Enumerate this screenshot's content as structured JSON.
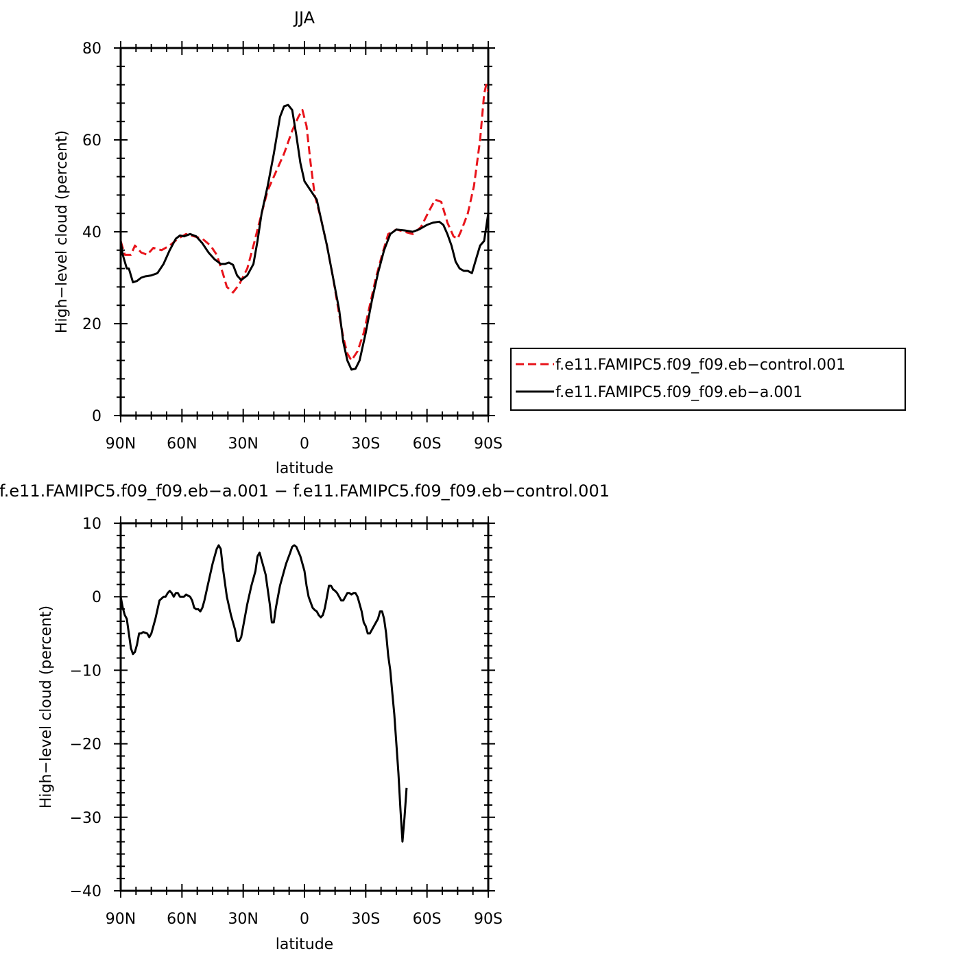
{
  "chart_data": [
    {
      "type": "line",
      "title": "JJA",
      "xlabel": "latitude",
      "ylabel": "High−level cloud (percent)",
      "xlim": [
        90,
        -90
      ],
      "ylim": [
        0,
        80
      ],
      "x_ticks": [
        {
          "value": 90,
          "label": "90N"
        },
        {
          "value": 60,
          "label": "60N"
        },
        {
          "value": 30,
          "label": "30N"
        },
        {
          "value": 0,
          "label": "0"
        },
        {
          "value": -30,
          "label": "30S"
        },
        {
          "value": -60,
          "label": "60S"
        },
        {
          "value": -90,
          "label": "90S"
        }
      ],
      "y_ticks": [
        {
          "value": 0,
          "label": "0"
        },
        {
          "value": 20,
          "label": "20"
        },
        {
          "value": 40,
          "label": "40"
        },
        {
          "value": 60,
          "label": "60"
        },
        {
          "value": 80,
          "label": "80"
        }
      ],
      "legend_position": "right",
      "series": [
        {
          "name": "f.e11.FAMIPC5.f09_f09.eb−control.001",
          "color": "#e8141b",
          "dash": true,
          "points": [
            [
              90,
              38
            ],
            [
              88,
              35
            ],
            [
              85,
              35
            ],
            [
              83,
              37
            ],
            [
              80,
              35.5
            ],
            [
              77,
              35
            ],
            [
              74,
              36.5
            ],
            [
              70,
              36
            ],
            [
              66,
              37
            ],
            [
              62,
              38.5
            ],
            [
              58,
              39.5
            ],
            [
              54,
              39
            ],
            [
              50,
              38.5
            ],
            [
              46,
              37
            ],
            [
              43,
              35
            ],
            [
              40,
              31
            ],
            [
              38,
              28
            ],
            [
              35,
              26.8
            ],
            [
              32,
              28.5
            ],
            [
              28,
              32
            ],
            [
              25,
              37
            ],
            [
              21,
              44
            ],
            [
              18,
              49
            ],
            [
              14,
              53
            ],
            [
              10,
              57
            ],
            [
              6,
              62
            ],
            [
              3,
              65
            ],
            [
              1,
              66.5
            ],
            [
              -1,
              63
            ],
            [
              -3,
              55
            ],
            [
              -5,
              48
            ],
            [
              -8,
              43
            ],
            [
              -11,
              37
            ],
            [
              -14,
              30
            ],
            [
              -17,
              22
            ],
            [
              -19,
              17
            ],
            [
              -21,
              13.5
            ],
            [
              -23,
              12
            ],
            [
              -26,
              14
            ],
            [
              -29,
              18
            ],
            [
              -32,
              24
            ],
            [
              -35,
              30
            ],
            [
              -38,
              35
            ],
            [
              -41,
              39.5
            ],
            [
              -45,
              40.5
            ],
            [
              -49,
              40
            ],
            [
              -53,
              39.5
            ],
            [
              -57,
              41
            ],
            [
              -61,
              44.5
            ],
            [
              -64,
              47
            ],
            [
              -67,
              46.5
            ],
            [
              -70,
              42
            ],
            [
              -73,
              39
            ],
            [
              -75,
              38.5
            ],
            [
              -77,
              40.5
            ],
            [
              -80,
              44
            ],
            [
              -83,
              50
            ],
            [
              -86,
              60
            ],
            [
              -88,
              70
            ],
            [
              -89,
              72
            ],
            [
              -90,
              70.5
            ]
          ]
        },
        {
          "name": "f.e11.FAMIPC5.f09_f09.eb−a.001",
          "color": "#000000",
          "dash": false,
          "points": [
            [
              90,
              38
            ],
            [
              89,
              35
            ],
            [
              87,
              32
            ],
            [
              86,
              32
            ],
            [
              84,
              29
            ],
            [
              82,
              29.3
            ],
            [
              80,
              30
            ],
            [
              78,
              30.3
            ],
            [
              75,
              30.5
            ],
            [
              72,
              31
            ],
            [
              69,
              33
            ],
            [
              66,
              36
            ],
            [
              63,
              38.5
            ],
            [
              61,
              39.2
            ],
            [
              59,
              39
            ],
            [
              56,
              39.5
            ],
            [
              53,
              39
            ],
            [
              50,
              37.5
            ],
            [
              47,
              35.5
            ],
            [
              44,
              34
            ],
            [
              41,
              33
            ],
            [
              39,
              33
            ],
            [
              37,
              33.3
            ],
            [
              35,
              32.8
            ],
            [
              33,
              30.5
            ],
            [
              31,
              29.5
            ],
            [
              28,
              30.5
            ],
            [
              25,
              33
            ],
            [
              23,
              38
            ],
            [
              21,
              44
            ],
            [
              18,
              50
            ],
            [
              15,
              57
            ],
            [
              12,
              65
            ],
            [
              10,
              67.3
            ],
            [
              8,
              67.6
            ],
            [
              6,
              66.5
            ],
            [
              4,
              61
            ],
            [
              2,
              55
            ],
            [
              0,
              51
            ],
            [
              -3,
              49
            ],
            [
              -6,
              47
            ],
            [
              -8,
              43
            ],
            [
              -11,
              37
            ],
            [
              -14,
              30
            ],
            [
              -17,
              23
            ],
            [
              -19,
              16
            ],
            [
              -21,
              12
            ],
            [
              -23,
              10
            ],
            [
              -25,
              10.2
            ],
            [
              -27,
              12
            ],
            [
              -30,
              18
            ],
            [
              -33,
              25
            ],
            [
              -36,
              31
            ],
            [
              -39,
              36
            ],
            [
              -42,
              39.5
            ],
            [
              -45,
              40.5
            ],
            [
              -49,
              40.3
            ],
            [
              -53,
              40
            ],
            [
              -56,
              40.5
            ],
            [
              -60,
              41.5
            ],
            [
              -63,
              42
            ],
            [
              -66,
              42.2
            ],
            [
              -68,
              41.5
            ],
            [
              -70,
              39.5
            ],
            [
              -72,
              37
            ],
            [
              -74,
              33.5
            ],
            [
              -76,
              32
            ],
            [
              -78,
              31.5
            ],
            [
              -80,
              31.5
            ],
            [
              -82,
              31
            ],
            [
              -84,
              34
            ],
            [
              -86,
              37
            ],
            [
              -88,
              38
            ],
            [
              -89,
              41
            ],
            [
              -90,
              44
            ]
          ]
        }
      ]
    },
    {
      "type": "line",
      "title": "f.e11.FAMIPC5.f09_f09.eb−a.001 − f.e11.FAMIPC5.f09_f09.eb−control.001",
      "xlabel": "latitude",
      "ylabel": "High−level cloud (percent)",
      "xlim": [
        90,
        -90
      ],
      "ylim": [
        -40,
        10
      ],
      "x_ticks": [
        {
          "value": 90,
          "label": "90N"
        },
        {
          "value": 60,
          "label": "60N"
        },
        {
          "value": 30,
          "label": "30N"
        },
        {
          "value": 0,
          "label": "0"
        },
        {
          "value": -30,
          "label": "30S"
        },
        {
          "value": -60,
          "label": "60S"
        },
        {
          "value": -90,
          "label": "90S"
        }
      ],
      "y_ticks": [
        {
          "value": -40,
          "label": "−40"
        },
        {
          "value": -30,
          "label": "−30"
        },
        {
          "value": -20,
          "label": "−20"
        },
        {
          "value": -10,
          "label": "−10"
        },
        {
          "value": 0,
          "label": "0"
        },
        {
          "value": 10,
          "label": "10"
        }
      ],
      "series": [
        {
          "color": "#000000",
          "dash": false,
          "points": [
            [
              90,
              0
            ],
            [
              89,
              -1.5
            ],
            [
              88,
              -2.5
            ],
            [
              87,
              -3
            ],
            [
              86,
              -5
            ],
            [
              85,
              -7
            ],
            [
              84,
              -7.8
            ],
            [
              83,
              -7.5
            ],
            [
              82,
              -6.5
            ],
            [
              81,
              -5
            ],
            [
              80,
              -5
            ],
            [
              79,
              -4.8
            ],
            [
              77,
              -5
            ],
            [
              76,
              -5.5
            ],
            [
              75,
              -5
            ],
            [
              73,
              -3
            ],
            [
              71,
              -0.5
            ],
            [
              69,
              0
            ],
            [
              68,
              0
            ],
            [
              67,
              0.5
            ],
            [
              66,
              0.8
            ],
            [
              65,
              0.5
            ],
            [
              64,
              0
            ],
            [
              63,
              0.5
            ],
            [
              62,
              0.5
            ],
            [
              61,
              0
            ],
            [
              59,
              0
            ],
            [
              58,
              0.3
            ],
            [
              56,
              0
            ],
            [
              55,
              -0.5
            ],
            [
              54,
              -1.5
            ],
            [
              53,
              -1.7
            ],
            [
              52,
              -1.7
            ],
            [
              51,
              -2
            ],
            [
              50,
              -1.5
            ],
            [
              49,
              -0.5
            ],
            [
              47,
              2
            ],
            [
              45,
              4.5
            ],
            [
              43,
              6.5
            ],
            [
              42,
              7
            ],
            [
              41,
              6.5
            ],
            [
              40,
              4
            ],
            [
              38,
              0
            ],
            [
              36,
              -2.5
            ],
            [
              34,
              -4.5
            ],
            [
              33,
              -6
            ],
            [
              32,
              -6
            ],
            [
              31,
              -5.5
            ],
            [
              30,
              -4
            ],
            [
              28,
              -1
            ],
            [
              26,
              1.5
            ],
            [
              24,
              3.5
            ],
            [
              23,
              5.5
            ],
            [
              22,
              6
            ],
            [
              21,
              5
            ],
            [
              19,
              3
            ],
            [
              18,
              1
            ],
            [
              17,
              -1
            ],
            [
              16,
              -3.5
            ],
            [
              15,
              -3.5
            ],
            [
              14,
              -1.5
            ],
            [
              12,
              1.5
            ],
            [
              10,
              3.5
            ],
            [
              9,
              4.5
            ],
            [
              7,
              6
            ],
            [
              6,
              6.8
            ],
            [
              5,
              7
            ],
            [
              4,
              6.8
            ],
            [
              2,
              5.5
            ],
            [
              0,
              3.5
            ],
            [
              -1,
              1.5
            ],
            [
              -2,
              0
            ],
            [
              -4,
              -1.5
            ],
            [
              -5,
              -1.8
            ],
            [
              -6,
              -2
            ],
            [
              -7,
              -2.5
            ],
            [
              -8,
              -2.8
            ],
            [
              -9,
              -2.5
            ],
            [
              -10,
              -1.5
            ],
            [
              -11,
              0
            ],
            [
              -12,
              1.5
            ],
            [
              -13,
              1.5
            ],
            [
              -14,
              1
            ],
            [
              -15,
              0.8
            ],
            [
              -16,
              0.5
            ],
            [
              -17,
              0
            ],
            [
              -18,
              -0.5
            ],
            [
              -19,
              -0.5
            ],
            [
              -20,
              0
            ],
            [
              -21,
              0.5
            ],
            [
              -22,
              0.5
            ],
            [
              -23,
              0.3
            ],
            [
              -24,
              0.5
            ],
            [
              -25,
              0.5
            ],
            [
              -26,
              0
            ],
            [
              -28,
              -2
            ],
            [
              -29,
              -3.5
            ],
            [
              -30,
              -4
            ],
            [
              -31,
              -5
            ],
            [
              -32,
              -5
            ],
            [
              -33,
              -4.5
            ],
            [
              -34,
              -4
            ],
            [
              -36,
              -3
            ],
            [
              -37,
              -2
            ],
            [
              -38,
              -2
            ],
            [
              -39,
              -3
            ],
            [
              -40,
              -5
            ],
            [
              -41,
              -8
            ],
            [
              -42,
              -10
            ],
            [
              -43,
              -13
            ],
            [
              -44,
              -16
            ],
            [
              -45,
              -20
            ],
            [
              -46,
              -24
            ],
            [
              -47,
              -29
            ],
            [
              -48,
              -33.3
            ],
            [
              -49,
              -30
            ],
            [
              -50,
              -26
            ]
          ]
        }
      ]
    }
  ]
}
